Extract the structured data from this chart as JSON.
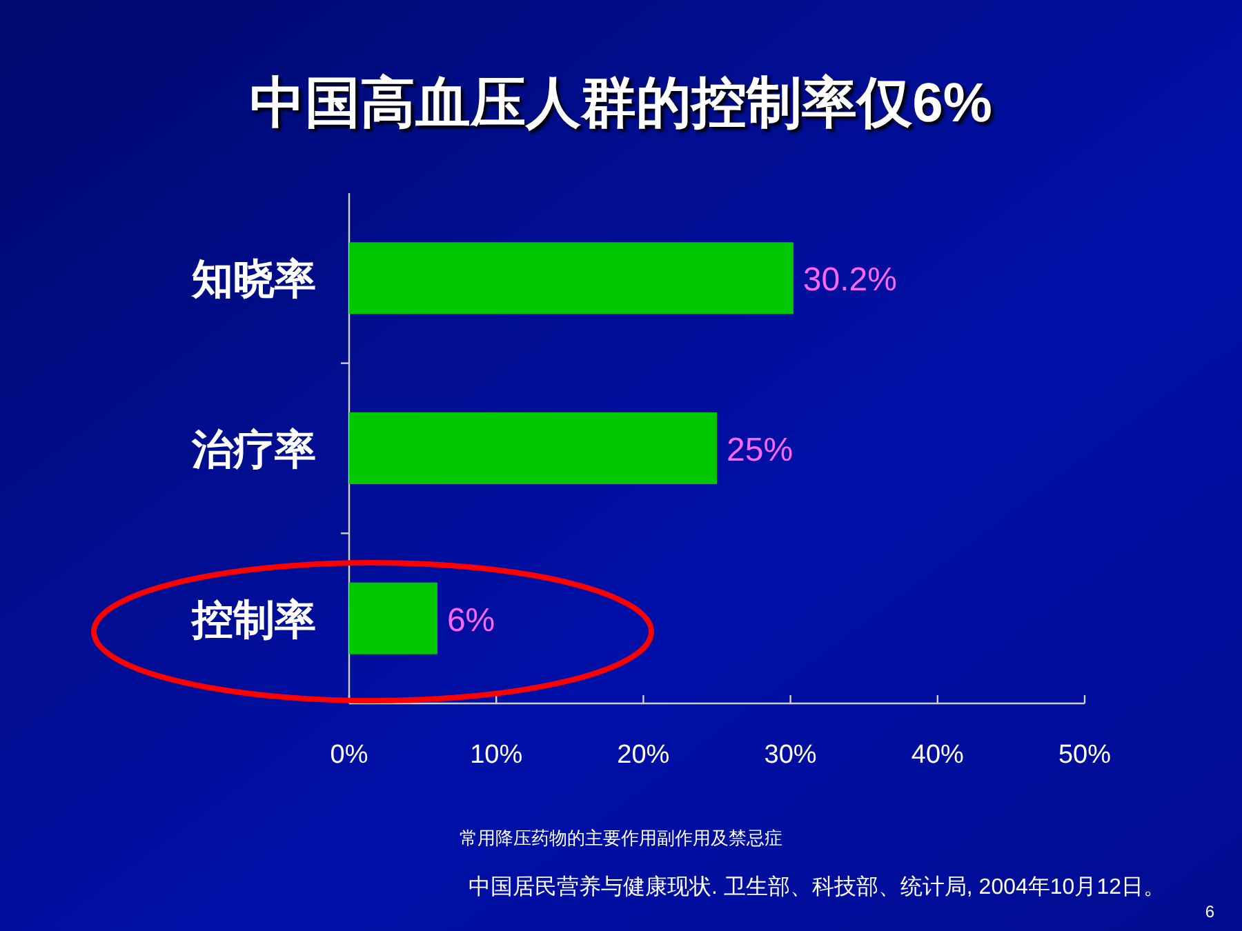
{
  "chart_data": {
    "type": "bar",
    "orientation": "horizontal",
    "title": "中国高血压人群的控制率仅6%",
    "categories": [
      "知晓率",
      "治疗率",
      "控制率"
    ],
    "values": [
      30.2,
      25,
      6
    ],
    "value_labels": [
      "30.2%",
      "25%",
      "6%"
    ],
    "color": "#00c800",
    "xlim": [
      0,
      50
    ],
    "xticks": [
      {
        "value": 0,
        "label": "0%"
      },
      {
        "value": 10,
        "label": "10%"
      },
      {
        "value": 20,
        "label": "20%"
      },
      {
        "value": 30,
        "label": "30%"
      },
      {
        "value": 40,
        "label": "40%"
      },
      {
        "value": 50,
        "label": "50%"
      }
    ],
    "grid": false,
    "annotations": [
      "常用降压药物的主要作用副作用及禁忌症",
      "中国居民营养与健康现状. 卫生部、科技部、统计局, 2004年10月12日。",
      "6"
    ]
  }
}
